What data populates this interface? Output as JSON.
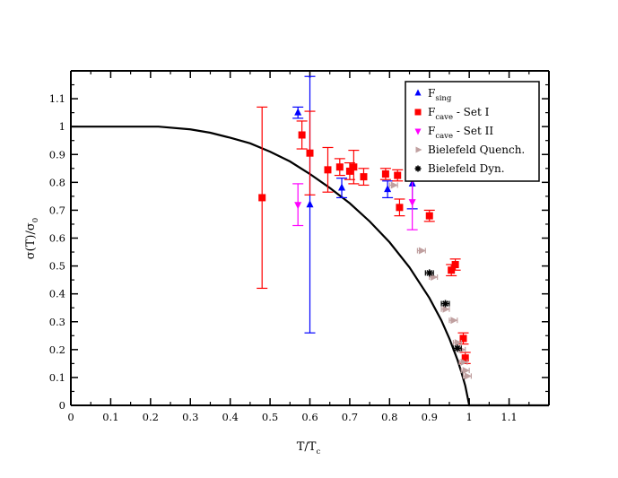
{
  "chart_data": {
    "type": "scatter",
    "xlabel": {
      "main": "T/T",
      "sub": "c"
    },
    "ylabel": {
      "main": "σ(T)/σ",
      "sub": "0"
    },
    "xlim": [
      0,
      1.2
    ],
    "ylim": [
      0,
      1.2
    ],
    "xticks": [
      0,
      0.1,
      0.2,
      0.3,
      0.4,
      0.5,
      0.6,
      0.7,
      0.8,
      0.9,
      1,
      1.1
    ],
    "xtick_labels": [
      "0",
      "0.1",
      "0.2",
      "0.3",
      "0.4",
      "0.5",
      "0.6",
      "0.7",
      "0.8",
      "0.9",
      "1",
      "1.1"
    ],
    "yticks": [
      0,
      0.1,
      0.2,
      0.3,
      0.4,
      0.5,
      0.6,
      0.7,
      0.8,
      0.9,
      1,
      1.1
    ],
    "ytick_labels": [
      "0",
      "0.1",
      "0.2",
      "0.3",
      "0.4",
      "0.5",
      "0.6",
      "0.7",
      "0.8",
      "0.9",
      "1",
      "1.1"
    ],
    "curve": {
      "name": "fit",
      "color": "#000000",
      "points": [
        [
          0,
          1
        ],
        [
          0.22,
          1
        ],
        [
          0.3,
          0.99
        ],
        [
          0.35,
          0.978
        ],
        [
          0.4,
          0.96
        ],
        [
          0.45,
          0.94
        ],
        [
          0.5,
          0.91
        ],
        [
          0.55,
          0.875
        ],
        [
          0.6,
          0.83
        ],
        [
          0.65,
          0.78
        ],
        [
          0.7,
          0.725
        ],
        [
          0.75,
          0.66
        ],
        [
          0.8,
          0.585
        ],
        [
          0.85,
          0.495
        ],
        [
          0.9,
          0.385
        ],
        [
          0.93,
          0.305
        ],
        [
          0.95,
          0.24
        ],
        [
          0.97,
          0.165
        ],
        [
          0.98,
          0.12
        ],
        [
          0.99,
          0.07
        ],
        [
          0.995,
          0.035
        ],
        [
          1.0,
          0
        ],
        [
          1.2,
          0
        ]
      ]
    },
    "series": [
      {
        "name": "F_sing",
        "legend_main": "F",
        "legend_sub": "sing",
        "legend_rest": "",
        "marker": "triangle-up",
        "color": "#0000ff",
        "points": [
          {
            "x": 0.57,
            "y": 1.05,
            "err": 0.02
          },
          {
            "x": 0.6,
            "y": 0.72,
            "err": 0.46
          },
          {
            "x": 0.68,
            "y": 0.78,
            "err": 0.035
          },
          {
            "x": 0.795,
            "y": 0.775,
            "err": 0.03
          },
          {
            "x": 0.857,
            "y": 0.795,
            "err": 0.09
          }
        ]
      },
      {
        "name": "F_cave - Set I",
        "legend_main": "F",
        "legend_sub": "cave",
        "legend_rest": " - Set I",
        "marker": "square",
        "color": "#ff0000",
        "points": [
          {
            "x": 0.48,
            "y": 0.745,
            "err": 0.325
          },
          {
            "x": 0.58,
            "y": 0.97,
            "err": 0.05
          },
          {
            "x": 0.6,
            "y": 0.905,
            "err": 0.15
          },
          {
            "x": 0.645,
            "y": 0.845,
            "err": 0.08
          },
          {
            "x": 0.675,
            "y": 0.855,
            "err": 0.03
          },
          {
            "x": 0.7,
            "y": 0.84,
            "err": 0.03
          },
          {
            "x": 0.71,
            "y": 0.855,
            "err": 0.06
          },
          {
            "x": 0.735,
            "y": 0.82,
            "err": 0.03
          },
          {
            "x": 0.79,
            "y": 0.83,
            "err": 0.02
          },
          {
            "x": 0.82,
            "y": 0.825,
            "err": 0.02
          },
          {
            "x": 0.825,
            "y": 0.71,
            "err": 0.03
          },
          {
            "x": 0.9,
            "y": 0.68,
            "err": 0.02
          },
          {
            "x": 0.955,
            "y": 0.485,
            "err": 0.02
          },
          {
            "x": 0.965,
            "y": 0.505,
            "err": 0.02
          },
          {
            "x": 0.985,
            "y": 0.24,
            "err": 0.02
          },
          {
            "x": 0.99,
            "y": 0.17,
            "err": 0.02
          }
        ]
      },
      {
        "name": "F_cave - Set II",
        "legend_main": "F",
        "legend_sub": "cave",
        "legend_rest": " - Set II",
        "marker": "triangle-down",
        "color": "#ff00ff",
        "points": [
          {
            "x": 0.57,
            "y": 0.72,
            "err": 0.075
          },
          {
            "x": 0.857,
            "y": 0.73,
            "err": 0.1
          }
        ]
      },
      {
        "name": "Bielefeld Quench.",
        "legend_main": "Bielefeld Quench.",
        "legend_sub": "",
        "legend_rest": "",
        "marker": "triangle-right",
        "color": "#c0a0a0",
        "xerr": 0.01,
        "points": [
          {
            "x": 0.81,
            "y": 0.79
          },
          {
            "x": 0.88,
            "y": 0.555
          },
          {
            "x": 0.91,
            "y": 0.46
          },
          {
            "x": 0.94,
            "y": 0.345
          },
          {
            "x": 0.96,
            "y": 0.305
          },
          {
            "x": 0.97,
            "y": 0.225
          },
          {
            "x": 0.98,
            "y": 0.2
          },
          {
            "x": 0.985,
            "y": 0.155
          },
          {
            "x": 0.99,
            "y": 0.125
          },
          {
            "x": 0.995,
            "y": 0.105
          }
        ]
      },
      {
        "name": "Bielefeld Dyn.",
        "legend_main": "Bielefeld Dyn.",
        "legend_sub": "",
        "legend_rest": "",
        "marker": "star",
        "color": "#000000",
        "xerr": 0.01,
        "points": [
          {
            "x": 0.9,
            "y": 0.475
          },
          {
            "x": 0.94,
            "y": 0.365
          },
          {
            "x": 0.97,
            "y": 0.205
          }
        ]
      }
    ],
    "legend": {
      "position": "top-right"
    }
  }
}
